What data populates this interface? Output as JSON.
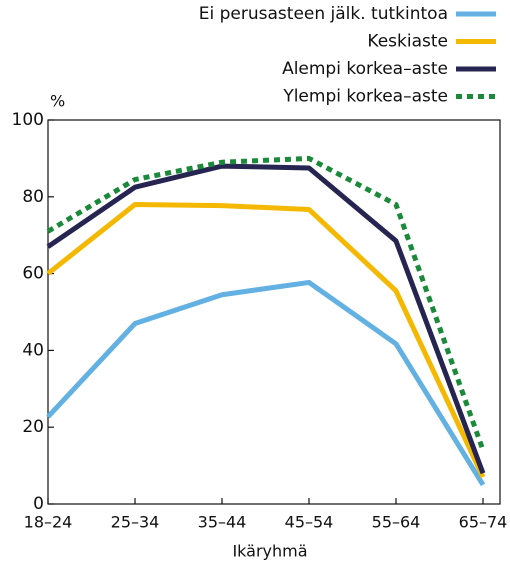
{
  "chart_data": {
    "type": "line",
    "x_label": "Ikäryhmä",
    "y_label": "%",
    "categories": [
      "18–24",
      "25–34",
      "35–44",
      "45–54",
      "55–64",
      "65–74"
    ],
    "series": [
      {
        "name": "Ei perusasteen jälk. tutkintoa",
        "color": "#63b0e3",
        "dash": false,
        "values": [
          22.7,
          47,
          54.5,
          57.7,
          41.7,
          5
        ]
      },
      {
        "name": "Keskiaste",
        "color": "#f5b800",
        "dash": false,
        "values": [
          60,
          78,
          77.7,
          76.7,
          55.5,
          7
        ]
      },
      {
        "name": "Alempi korkea–aste",
        "color": "#262451",
        "dash": false,
        "values": [
          67,
          82.5,
          88,
          87.5,
          68.5,
          8
        ]
      },
      {
        "name": "Ylempi korkea–aste",
        "color": "#1a8a3a",
        "dash": true,
        "values": [
          71,
          84.5,
          89,
          90,
          78,
          14
        ]
      }
    ],
    "ylim": [
      0,
      100
    ],
    "yticks": [
      0,
      20,
      40,
      60,
      80,
      100
    ]
  }
}
